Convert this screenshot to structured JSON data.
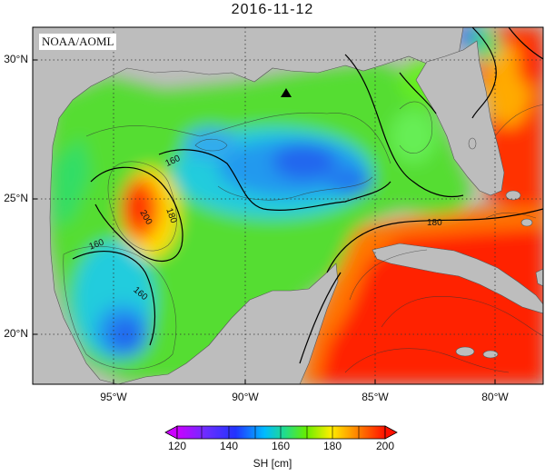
{
  "title": "2016-11-12",
  "source_label": "NOAA/AOML",
  "y_axis": {
    "ticks": [
      "30°N",
      "25°N",
      "20°N"
    ]
  },
  "x_axis": {
    "ticks": [
      "95°W",
      "90°W",
      "85°W",
      "80°W"
    ]
  },
  "colorbar": {
    "label": "SH [cm]",
    "ticks": [
      "120",
      "140",
      "160",
      "180",
      "200"
    ],
    "colors": [
      "#cc00ff",
      "#2233ff",
      "#00bbff",
      "#22dd88",
      "#66ee00",
      "#ffee00",
      "#ff8800",
      "#ff2200"
    ]
  },
  "contour_labels": [
    "160",
    "180",
    "200",
    "160",
    "160",
    "180"
  ],
  "colors": {
    "land": "#bdbdbd",
    "border": "#000000"
  }
}
